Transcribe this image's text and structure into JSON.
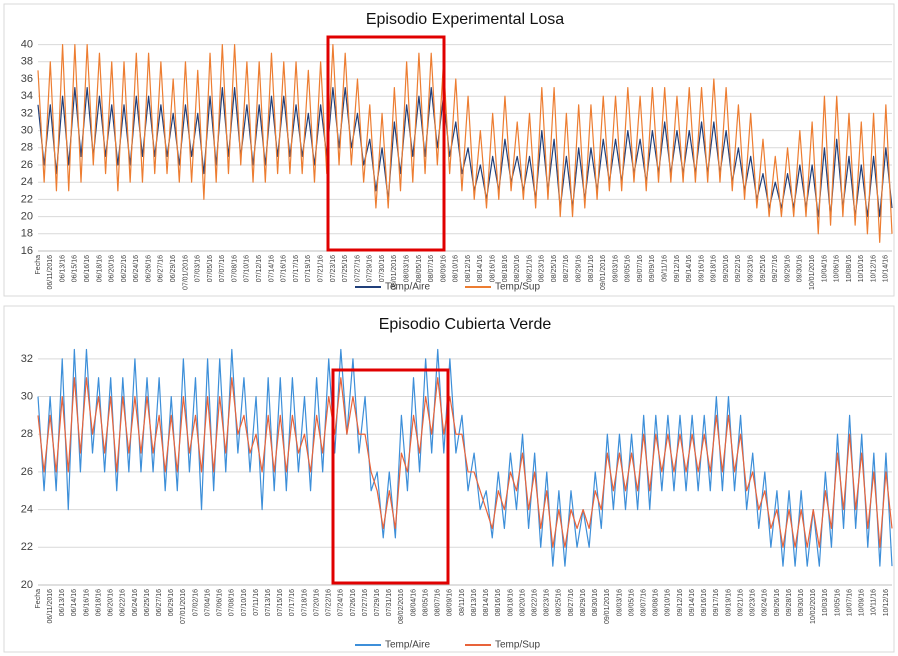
{
  "chart_data": [
    {
      "type": "line",
      "title": "Episodio Experimental Losa",
      "categories": [
        "Fecha",
        null,
        "06/11/2016",
        null,
        "06/13/16",
        null,
        "06/15/16",
        null,
        "06/16/16",
        null,
        "06/18/16",
        null,
        "06/20/16",
        null,
        "06/22/16",
        null,
        "06/24/16",
        null,
        "06/26/16",
        null,
        "06/27/16",
        null,
        "06/29/16",
        null,
        "07/01/2016",
        null,
        "07/03/16",
        null,
        "07/05/16",
        null,
        "07/07/16",
        null,
        "07/08/16",
        null,
        "07/10/16",
        null,
        "07/12/16",
        null,
        "07/14/16",
        null,
        "07/16/16",
        null,
        "07/17/16",
        null,
        "07/19/16",
        null,
        "07/21/16",
        null,
        "07/23/16",
        null,
        "07/25/16",
        null,
        "07/27/16",
        null,
        "07/29/16",
        null,
        "07/30/16",
        null,
        "08/01/2016",
        null,
        "08/03/16",
        null,
        "08/05/16",
        null,
        "08/07/16",
        null,
        "08/09/16",
        null,
        "08/10/16",
        null,
        "08/12/16",
        null,
        "08/14/16",
        null,
        "08/16/16",
        null,
        "08/18/16",
        null,
        "08/20/16",
        null,
        "08/21/16",
        null,
        "08/23/16",
        null,
        "08/25/16",
        null,
        "08/27/16",
        null,
        "08/29/16",
        null,
        "08/31/16",
        null,
        "09/01/2016",
        null,
        "09/03/16",
        null,
        "09/05/16",
        null,
        "09/07/16",
        null,
        "09/09/16",
        null,
        "09/11/16",
        null,
        "09/12/16",
        null,
        "09/14/16",
        null,
        "09/16/16",
        null,
        "09/18/16",
        null,
        "09/20/16",
        null,
        "09/22/16",
        null,
        "09/23/16",
        null,
        "09/25/16",
        null,
        "09/27/16",
        null,
        "09/29/16",
        null,
        "09/30/16",
        null,
        "10/01/2016",
        null,
        "10/04/16",
        null,
        "10/06/16",
        null,
        "10/08/16",
        null,
        "10/10/16",
        null,
        "10/12/16",
        null,
        "10/14/16",
        null
      ],
      "series": [
        {
          "name": "Temp/Aire",
          "color": "#203f7a",
          "values": [
            33,
            26,
            33,
            25,
            34,
            26,
            35,
            27,
            35,
            27,
            34,
            27,
            33,
            26,
            33,
            26,
            34,
            27,
            34,
            27,
            33,
            27,
            32,
            26,
            33,
            27,
            32,
            25,
            34,
            26,
            35,
            27,
            35,
            27,
            33,
            26,
            33,
            26,
            34,
            27,
            34,
            27,
            33,
            27,
            32,
            26,
            33,
            27,
            35,
            28,
            35,
            28,
            32,
            26,
            29,
            23,
            28,
            22,
            31,
            25,
            33,
            27,
            34,
            27,
            35,
            28,
            34,
            27,
            31,
            25,
            28,
            23,
            26,
            22,
            27,
            23,
            29,
            24,
            27,
            23,
            27,
            22,
            30,
            23,
            29,
            21,
            27,
            21,
            28,
            22,
            28,
            23,
            29,
            24,
            29,
            24,
            30,
            25,
            29,
            24,
            30,
            25,
            31,
            25,
            30,
            25,
            30,
            25,
            31,
            25,
            31,
            25,
            30,
            24,
            28,
            23,
            27,
            22,
            25,
            21,
            24,
            21,
            25,
            21,
            26,
            21,
            26,
            20,
            28,
            20,
            29,
            21,
            27,
            20,
            26,
            20,
            27,
            20,
            28,
            21
          ]
        },
        {
          "name": "Temp/Sup",
          "color": "#ed7d31",
          "values": [
            37,
            24,
            38,
            23,
            40,
            23,
            40,
            24,
            40,
            26,
            39,
            25,
            38,
            23,
            38,
            24,
            39,
            24,
            39,
            25,
            38,
            25,
            36,
            24,
            38,
            24,
            37,
            22,
            39,
            24,
            40,
            25,
            40,
            26,
            38,
            24,
            38,
            24,
            39,
            25,
            38,
            25,
            38,
            25,
            37,
            24,
            38,
            25,
            40,
            26,
            39,
            26,
            36,
            24,
            33,
            21,
            32,
            21,
            35,
            23,
            38,
            24,
            39,
            25,
            39,
            26,
            38,
            25,
            36,
            23,
            34,
            22,
            30,
            21,
            32,
            22,
            34,
            23,
            31,
            22,
            32,
            21,
            35,
            22,
            35,
            20,
            32,
            20,
            33,
            21,
            33,
            22,
            34,
            23,
            34,
            23,
            35,
            24,
            34,
            23,
            35,
            24,
            35,
            24,
            34,
            24,
            35,
            24,
            35,
            24,
            36,
            24,
            35,
            23,
            33,
            22,
            32,
            21,
            29,
            20,
            27,
            20,
            28,
            20,
            30,
            20,
            31,
            18,
            34,
            19,
            34,
            20,
            32,
            19,
            31,
            18,
            32,
            17,
            33,
            18
          ]
        }
      ],
      "ylim": [
        16,
        41
      ],
      "yticks": [
        16,
        18,
        20,
        22,
        24,
        26,
        28,
        30,
        32,
        34,
        36,
        38,
        40
      ],
      "grid": true,
      "legend": "bottom"
    },
    {
      "type": "line",
      "title": "Episodio Cubierta Verde",
      "categories": [
        "Fecha",
        null,
        "06/11/2016",
        null,
        "06/13/16",
        null,
        "06/14/16",
        null,
        "06/16/16",
        null,
        "06/18/16",
        null,
        "06/20/16",
        null,
        "06/22/16",
        null,
        "06/24/16",
        null,
        "06/25/16",
        null,
        "06/27/16",
        null,
        "06/29/16",
        null,
        "07/01/2016",
        null,
        "07/02/16",
        null,
        "07/04/16",
        null,
        "07/06/16",
        null,
        "07/08/16",
        null,
        "07/10/16",
        null,
        "07/11/16",
        null,
        "07/13/16",
        null,
        "07/15/16",
        null,
        "07/17/16",
        null,
        "07/18/16",
        null,
        "07/20/16",
        null,
        "07/22/16",
        null,
        "07/24/16",
        null,
        "07/26/16",
        null,
        "07/27/16",
        null,
        "07/29/16",
        null,
        "07/31/16",
        null,
        "08/02/2016",
        null,
        "08/04/16",
        null,
        "08/05/16",
        null,
        "08/07/16",
        null,
        "08/09/16",
        null,
        "08/11/16",
        null,
        "08/13/16",
        null,
        "08/14/16",
        null,
        "08/16/16",
        null,
        "08/18/16",
        null,
        "08/20/16",
        null,
        "08/22/16",
        null,
        "08/23/16",
        null,
        "08/25/16",
        null,
        "08/27/16",
        null,
        "08/29/16",
        null,
        "08/30/16",
        null,
        "09/01/2016",
        null,
        "09/03/16",
        null,
        "09/05/16",
        null,
        "09/07/16",
        null,
        "09/08/16",
        null,
        "09/10/16",
        null,
        "09/12/16",
        null,
        "09/14/16",
        null,
        "09/16/16",
        null,
        "09/17/16",
        null,
        "09/19/16",
        null,
        "09/21/16",
        null,
        "09/23/16",
        null,
        "09/24/16",
        null,
        "09/26/16",
        null,
        "09/28/16",
        null,
        "09/30/16",
        null,
        "10/02/2016",
        null,
        "10/03/16",
        null,
        "10/05/16",
        null,
        "10/07/16",
        null,
        "10/09/16",
        null,
        "10/11/16",
        null,
        "10/12/16",
        null
      ],
      "series": [
        {
          "name": "Temp/Aire",
          "color": "#3d8fd9",
          "values": [
            30,
            25,
            30,
            25,
            32,
            24,
            32.5,
            26,
            32.5,
            27,
            31,
            26,
            31,
            25,
            31,
            26,
            32,
            26,
            31,
            26,
            31,
            25,
            30,
            25,
            32,
            26,
            31,
            24,
            32,
            25,
            32,
            26,
            32.5,
            27,
            31,
            26,
            30,
            24,
            31,
            25,
            31,
            25,
            31,
            26,
            30,
            25,
            31,
            26,
            32,
            27,
            32.5,
            28,
            32,
            27,
            30,
            25,
            26,
            22.5,
            26,
            22.5,
            29,
            25,
            31,
            26,
            32,
            27,
            32.5,
            27,
            32,
            27,
            29,
            25,
            27,
            24,
            25,
            22.5,
            26,
            23,
            27,
            24,
            28,
            23,
            27,
            22,
            26,
            21,
            25,
            21,
            25,
            22,
            24,
            22,
            26,
            23,
            28,
            24,
            28,
            24,
            28,
            24,
            29,
            24,
            29,
            25,
            29,
            25,
            29,
            25,
            29,
            25,
            29,
            25,
            30,
            25,
            30,
            25,
            29,
            24,
            27,
            23,
            26,
            22,
            25,
            21,
            25,
            21,
            25,
            21,
            24,
            21,
            26,
            22,
            28,
            23,
            29,
            23,
            28,
            22,
            27,
            21,
            27,
            21
          ]
        },
        {
          "name": "Temp/Sup",
          "color": "#e8633a",
          "values": [
            29,
            26,
            29,
            26,
            30,
            26,
            31,
            27,
            31,
            28,
            30,
            27,
            30,
            26,
            30,
            27,
            30,
            27,
            30,
            27,
            29,
            26,
            29,
            26,
            30,
            27,
            29,
            26,
            30,
            26,
            30,
            27,
            31,
            28,
            29,
            27,
            28,
            26,
            29,
            26,
            29,
            26,
            29,
            27,
            28,
            26,
            29,
            27,
            30,
            28,
            31,
            28,
            30,
            28,
            28,
            26,
            25,
            23,
            25,
            23,
            27,
            26,
            29,
            27,
            30,
            28,
            31,
            28,
            30,
            28,
            28,
            26,
            26,
            25,
            24,
            23,
            25,
            24,
            26,
            25,
            27,
            24,
            26,
            23,
            25,
            22,
            24,
            22,
            24,
            23,
            24,
            23,
            25,
            24,
            27,
            25,
            27,
            25,
            27,
            25,
            28,
            25,
            28,
            26,
            28,
            26,
            28,
            26,
            28,
            26,
            28,
            26,
            29,
            26,
            29,
            26,
            28,
            25,
            26,
            24,
            25,
            23,
            24,
            22,
            24,
            22,
            24,
            22,
            24,
            22,
            25,
            23,
            27,
            24,
            28,
            24,
            27,
            23,
            26,
            22,
            26,
            23
          ]
        }
      ],
      "ylim": [
        20,
        33
      ],
      "yticks": [
        20,
        22,
        24,
        26,
        28,
        30,
        32
      ],
      "grid": true,
      "legend": "bottom"
    }
  ]
}
